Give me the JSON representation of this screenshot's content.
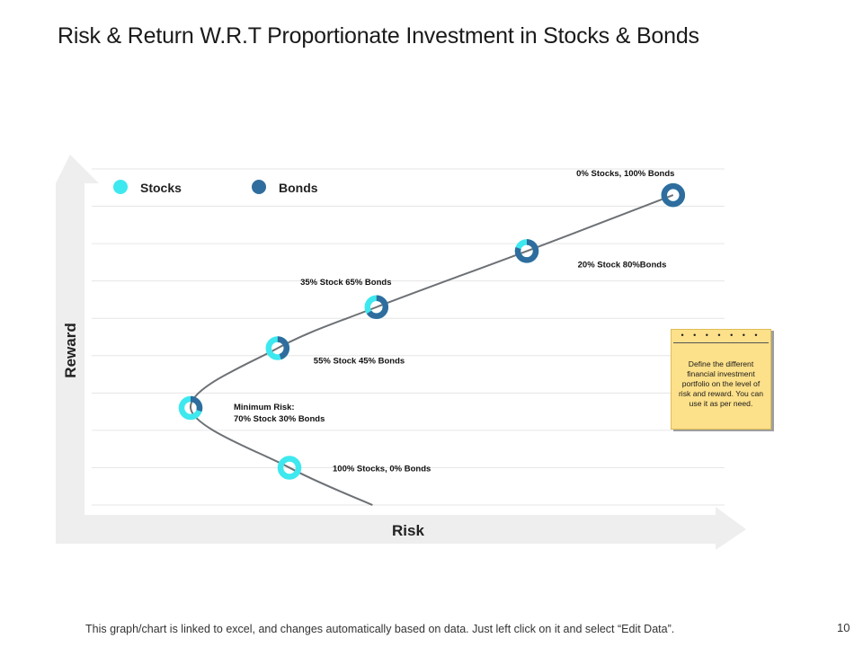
{
  "title": "Risk & Return W.R.T Proportionate Investment in Stocks & Bonds",
  "footer": "This graph/chart is linked to excel, and changes automatically based on data. Just left click on it and select “Edit Data”.",
  "page_number": "10",
  "note": {
    "dots": "• • • • • • •",
    "text": "Define the different financial investment portfolio on the level of risk and reward. You can use it as per need."
  },
  "colors": {
    "stocks": "#3ee8ef",
    "bonds": "#2f6d9e",
    "curve": "#6d7175",
    "axis": "#eeeeee",
    "grid": "#e6e6e6",
    "note_bg": "#fce08a"
  },
  "chart_data": {
    "type": "scatter",
    "title": "Risk & Return W.R.T Proportionate Investment in Stocks & Bonds",
    "xlabel": "Risk",
    "ylabel": "Reward",
    "legend": [
      "Stocks",
      "Bonds"
    ],
    "legend_position": "top-left",
    "grid": true,
    "points": [
      {
        "label": "100% Stocks, 0% Bonds",
        "stocks": 100,
        "bonds": 0,
        "risk": 5.0,
        "reward": 1.0
      },
      {
        "label": "Minimum Risk:",
        "label2": "70% Stock 30% Bonds",
        "stocks": 70,
        "bonds": 30,
        "risk": 2.5,
        "reward": 2.6
      },
      {
        "label": "55% Stock 45% Bonds",
        "stocks": 55,
        "bonds": 45,
        "risk": 4.7,
        "reward": 4.2
      },
      {
        "label": "35% Stock 65% Bonds",
        "stocks": 35,
        "bonds": 65,
        "risk": 7.2,
        "reward": 5.3
      },
      {
        "label": "20% Stock 80%Bonds",
        "stocks": 20,
        "bonds": 80,
        "risk": 11.0,
        "reward": 6.8
      },
      {
        "label": "0% Stocks, 100% Bonds",
        "stocks": 0,
        "bonds": 100,
        "risk": 14.7,
        "reward": 8.3
      }
    ],
    "curve_tail": {
      "risk": 7.1,
      "reward": 0
    }
  }
}
